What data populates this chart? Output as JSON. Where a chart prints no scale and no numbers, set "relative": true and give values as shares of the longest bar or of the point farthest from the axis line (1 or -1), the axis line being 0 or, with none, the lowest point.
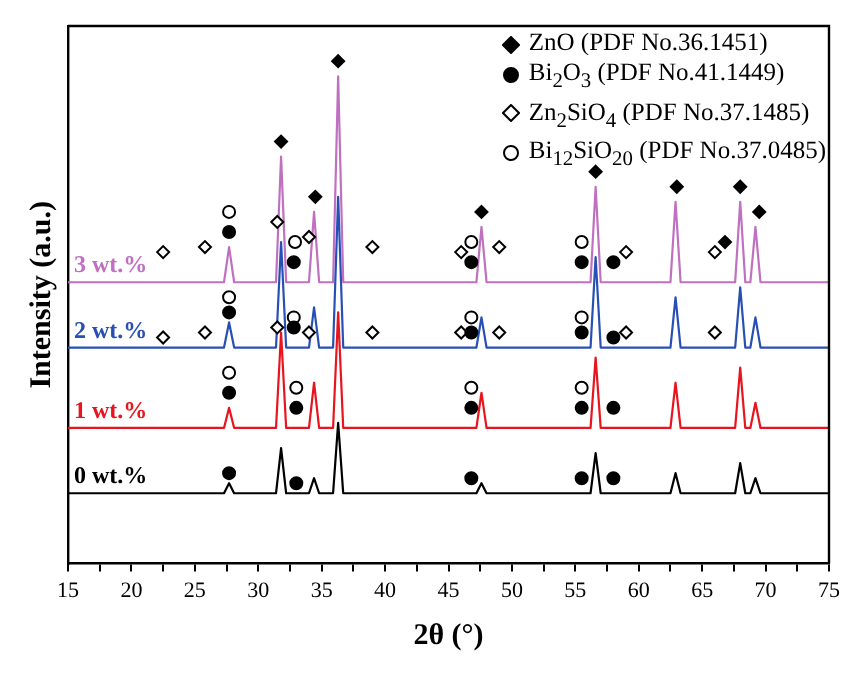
{
  "chart_data": {
    "type": "line",
    "relative": true,
    "xlabel": "2θ (°)",
    "ylabel": "Intensity (a.u.)",
    "xlim": [
      15,
      75
    ],
    "xticks": [
      15,
      {
        "value": 17.5,
        "label": null
      },
      20,
      {
        "value": 22.5,
        "label": null
      },
      25,
      {
        "value": 27.5,
        "label": null
      },
      30,
      {
        "value": 32.5,
        "label": null
      },
      35,
      {
        "value": 37.5,
        "label": null
      },
      40,
      {
        "value": 42.5,
        "label": null
      },
      45,
      {
        "value": 47.5,
        "label": null
      },
      50,
      {
        "value": 52.5,
        "label": null
      },
      55,
      {
        "value": 57.5,
        "label": null
      },
      60,
      {
        "value": 62.5,
        "label": null
      },
      65,
      {
        "value": 67.5,
        "label": null
      },
      70,
      {
        "value": 72.5,
        "label": null
      },
      75
    ],
    "grid": false,
    "legend": "top right",
    "marker": "none",
    "line_style": "solid",
    "x": [
      15,
      27.3,
      27.7,
      28.1,
      31.4,
      31.8,
      32.2,
      34.0,
      34.4,
      34.8,
      35.9,
      36.3,
      36.7,
      47.2,
      47.6,
      48.0,
      56.2,
      56.6,
      57.0,
      62.5,
      62.9,
      63.3,
      67.6,
      68.0,
      68.4,
      68.8,
      69.2,
      69.6,
      75
    ],
    "series": [
      {
        "name": "0 wt.%",
        "color": "#000000",
        "values": [
          0.14,
          0.14,
          0.16,
          0.14,
          0.14,
          0.23,
          0.14,
          0.14,
          0.17,
          0.14,
          0.14,
          0.28,
          0.14,
          0.14,
          0.16,
          0.14,
          0.14,
          0.22,
          0.14,
          0.14,
          0.18,
          0.14,
          0.14,
          0.2,
          0.14,
          0.14,
          0.17,
          0.14,
          0.14
        ]
      },
      {
        "name": "1 wt.%",
        "color": "#e8141e",
        "values": [
          0.27,
          0.27,
          0.31,
          0.27,
          0.27,
          0.46,
          0.27,
          0.27,
          0.36,
          0.27,
          0.27,
          0.5,
          0.27,
          0.27,
          0.34,
          0.27,
          0.27,
          0.41,
          0.27,
          0.27,
          0.36,
          0.27,
          0.27,
          0.39,
          0.27,
          0.27,
          0.32,
          0.27,
          0.27
        ]
      },
      {
        "name": "2 wt.%",
        "color": "#2850b4",
        "values": [
          0.43,
          0.43,
          0.48,
          0.43,
          0.43,
          0.64,
          0.43,
          0.43,
          0.51,
          0.43,
          0.43,
          0.73,
          0.43,
          0.43,
          0.49,
          0.43,
          0.43,
          0.61,
          0.43,
          0.43,
          0.53,
          0.43,
          0.43,
          0.55,
          0.43,
          0.43,
          0.49,
          0.43,
          0.43
        ]
      },
      {
        "name": "3 wt.%",
        "color": "#c070c0",
        "values": [
          0.56,
          0.56,
          0.63,
          0.56,
          0.56,
          0.81,
          0.56,
          0.56,
          0.7,
          0.56,
          0.56,
          0.97,
          0.56,
          0.56,
          0.67,
          0.56,
          0.56,
          0.75,
          0.56,
          0.56,
          0.72,
          0.56,
          0.56,
          0.72,
          0.56,
          0.56,
          0.67,
          0.56,
          0.56
        ]
      },
      {
        "name": "ZnO (PDF No.36.1451)",
        "type": "scatter",
        "marker": "diamond",
        "color": "#000000",
        "x": [
          31.8,
          34.5,
          36.3,
          47.6,
          56.6,
          63,
          66.8,
          68,
          69.5
        ],
        "values": [
          0.84,
          0.73,
          1.0,
          0.7,
          0.78,
          0.75,
          0.64,
          0.75,
          0.7
        ]
      },
      {
        "name": "Bi$_{2}$O$_{3}$ (PDF No.41.1449)",
        "type": "scatter",
        "marker": "circle",
        "color": "#000000",
        "x": [
          27.7,
          32.8,
          46.8,
          55.5,
          58,
          27.7,
          32.8,
          46.8,
          55.5,
          58,
          27.7,
          33,
          46.8,
          55.5,
          58,
          27.7,
          33,
          46.8,
          55.5,
          58
        ],
        "values": [
          0.66,
          0.6,
          0.6,
          0.6,
          0.6,
          0.5,
          0.47,
          0.46,
          0.46,
          0.45,
          0.34,
          0.31,
          0.31,
          0.31,
          0.31,
          0.18,
          0.16,
          0.17,
          0.17,
          0.17
        ]
      },
      {
        "name": "Zn$_{2}$SiO$_{4}$ (PDF No.37.1485)",
        "type": "scatter",
        "marker": "diamond",
        "color": "#ffffff",
        "x": [
          22.5,
          25.8,
          31.5,
          34.0,
          39,
          46,
          49,
          59,
          66,
          22.5,
          25.8,
          31.5,
          34.0,
          39,
          46,
          49,
          59,
          66
        ],
        "values": [
          0.62,
          0.63,
          0.68,
          0.65,
          0.63,
          0.62,
          0.63,
          0.62,
          0.62,
          0.45,
          0.46,
          0.47,
          0.46,
          0.46,
          0.46,
          0.46,
          0.46,
          0.46
        ]
      },
      {
        "name": "Bi$_{12}$SiO$_{20}$ (PDF No.37.0485)",
        "type": "scatter",
        "marker": "circle",
        "color": "#ffffff",
        "x": [
          27.7,
          32.9,
          46.8,
          55.5,
          27.7,
          32.8,
          46.8,
          55.5,
          27.7,
          33,
          46.8,
          55.5
        ],
        "values": [
          0.7,
          0.64,
          0.64,
          0.64,
          0.53,
          0.49,
          0.49,
          0.49,
          0.38,
          0.35,
          0.35,
          0.35
        ]
      }
    ]
  }
}
